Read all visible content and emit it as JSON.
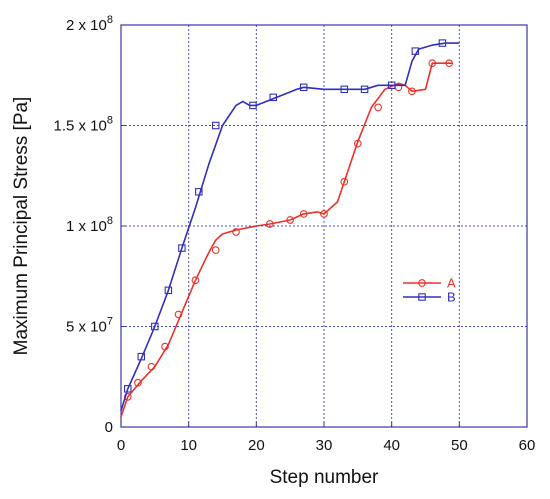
{
  "chart_data": {
    "type": "line",
    "xlabel": "Step number",
    "ylabel": "Maximum Principal Stress [Pa]",
    "xlim": [
      0,
      60
    ],
    "ylim": [
      0,
      200000000
    ],
    "grid": true,
    "legend_position": "center-right",
    "x_ticks": [
      0,
      10,
      20,
      30,
      40,
      50,
      60
    ],
    "x_tick_labels": [
      "0",
      "10",
      "20",
      "30",
      "40",
      "50",
      "60"
    ],
    "y_ticks": [
      {
        "value": 0,
        "mantissa": "0",
        "exponent": ""
      },
      {
        "value": 50000000,
        "mantissa": "5 x 10",
        "exponent": "7"
      },
      {
        "value": 100000000,
        "mantissa": "1 x 10",
        "exponent": "8"
      },
      {
        "value": 150000000,
        "mantissa": "1.5 x 10",
        "exponent": "8"
      },
      {
        "value": 200000000,
        "mantissa": "2 x 10",
        "exponent": "8"
      }
    ],
    "series": [
      {
        "name": "A",
        "color": "#e8322a",
        "marker": "circle",
        "x": [
          0,
          1,
          3,
          5,
          7,
          9,
          11,
          13,
          14,
          15,
          17,
          20,
          22,
          25,
          27,
          29,
          30,
          32,
          33,
          35,
          37,
          39,
          41,
          42,
          43,
          45,
          46,
          48,
          49
        ],
        "y": [
          5000000,
          15000000,
          23000000,
          30000000,
          41000000,
          57000000,
          73000000,
          87000000,
          93000000,
          96000000,
          98000000,
          100000000,
          101000000,
          103000000,
          106000000,
          107000000,
          106000000,
          112000000,
          122000000,
          142000000,
          159000000,
          168000000,
          171000000,
          170000000,
          167000000,
          168000000,
          181000000,
          181000000,
          181000000
        ],
        "marker_x": [
          1,
          2.5,
          4.5,
          6.5,
          8.5,
          11,
          14,
          17,
          22,
          25,
          27,
          30,
          33,
          35,
          38,
          41,
          43,
          46,
          48.5
        ],
        "marker_y": [
          15000000,
          22000000,
          30000000,
          40000000,
          56000000,
          73000000,
          88000000,
          97000000,
          101000000,
          103000000,
          106000000,
          106000000,
          122000000,
          141000000,
          159000000,
          169000000,
          167000000,
          181000000,
          181000000
        ]
      },
      {
        "name": "B",
        "color": "#3030b8",
        "marker": "square",
        "x": [
          0,
          1,
          3,
          5,
          7,
          9,
          11,
          13,
          15,
          17,
          18,
          19,
          20,
          23,
          26,
          27,
          30,
          33,
          36,
          38,
          40,
          42,
          43,
          44,
          46,
          48,
          50
        ],
        "y": [
          8000000,
          19000000,
          34000000,
          50000000,
          68000000,
          89000000,
          109000000,
          131000000,
          150000000,
          160000000,
          162000000,
          160000000,
          160000000,
          164000000,
          168000000,
          169000000,
          168000000,
          168000000,
          168000000,
          170000000,
          170000000,
          170000000,
          182000000,
          188000000,
          190000000,
          191000000,
          191000000
        ],
        "marker_x": [
          1,
          3,
          5,
          7,
          9,
          11.5,
          14,
          19.5,
          22.5,
          27,
          33,
          36,
          40,
          43.5,
          47.5
        ],
        "marker_y": [
          19000000,
          35000000,
          50000000,
          68000000,
          89000000,
          117000000,
          150000000,
          160000000,
          164000000,
          169000000,
          168000000,
          168000000,
          170000000,
          187000000,
          191000000
        ]
      }
    ]
  }
}
